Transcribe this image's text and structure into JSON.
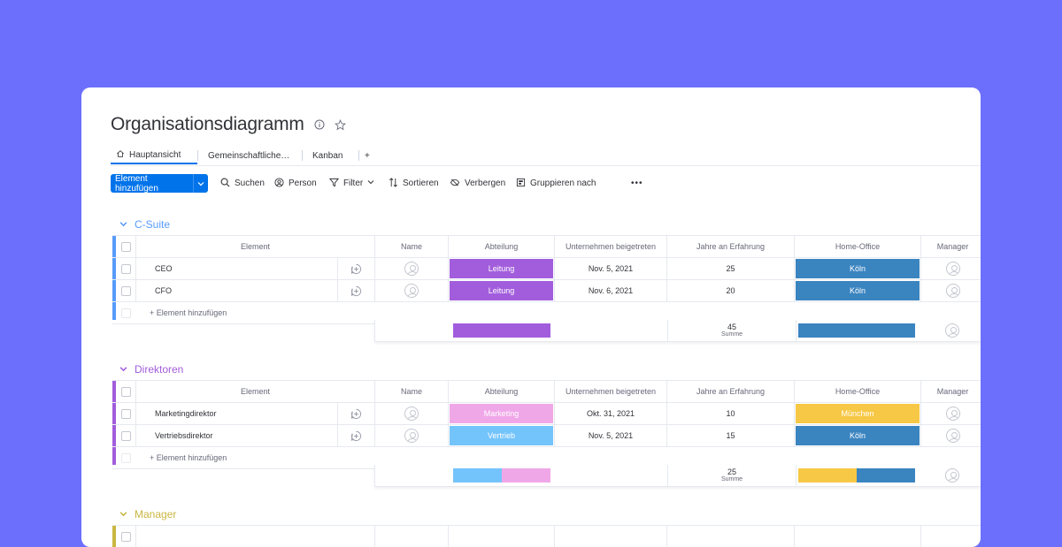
{
  "board": {
    "title": "Organisationsdiagramm",
    "info_icon": "info-icon",
    "star_icon": "star-icon"
  },
  "tabs": [
    {
      "label": "Hauptansicht",
      "icon": "home-icon",
      "active": true
    },
    {
      "label": "Gemeinschaftliche…"
    },
    {
      "label": "Kanban"
    },
    {
      "label": "+"
    }
  ],
  "toolbar": {
    "add_label": "Element hinzufügen",
    "search_label": "Suchen",
    "person_label": "Person",
    "filter_label": "Filter",
    "sort_label": "Sortieren",
    "hide_label": "Verbergen",
    "group_label": "Gruppieren nach",
    "more_label": "•••"
  },
  "columns": {
    "element": "Element",
    "name": "Name",
    "abteilung": "Abteilung",
    "beigetreten": "Unternehmen beigetreten",
    "erfahrung": "Jahre an Erfahrung",
    "homeoffice": "Home-Office",
    "manager": "Manager"
  },
  "colors": {
    "accent": "#0073ea",
    "csuite": "#579bfc",
    "direktoren": "#a25ddc",
    "manager": "#cab641",
    "leitung": "#a25ddc",
    "marketing": "#f0a7e8",
    "vertrieb": "#74c4fc",
    "koeln": "#3a84c0",
    "muenchen": "#f7c845"
  },
  "groups": [
    {
      "title": "C-Suite",
      "add_row": "+ Element hinzufügen",
      "summary_total": "45",
      "summary_label": "Summe",
      "rows": [
        {
          "element": "CEO",
          "abteilung": "Leitung",
          "beigetreten": "Nov. 5, 2021",
          "erfahrung": "25",
          "homeoffice": "Köln"
        },
        {
          "element": "CFO",
          "abteilung": "Leitung",
          "beigetreten": "Nov. 6, 2021",
          "erfahrung": "20",
          "homeoffice": "Köln"
        }
      ]
    },
    {
      "title": "Direktoren",
      "add_row": "+ Element hinzufügen",
      "summary_total": "25",
      "summary_label": "Summe",
      "rows": [
        {
          "element": "Marketingdirektor",
          "abteilung": "Marketing",
          "beigetreten": "Okt. 31, 2021",
          "erfahrung": "10",
          "homeoffice": "München"
        },
        {
          "element": "Vertriebsdirektor",
          "abteilung": "Vertrieb",
          "beigetreten": "Nov. 5, 2021",
          "erfahrung": "15",
          "homeoffice": "Köln"
        }
      ]
    },
    {
      "title": "Manager"
    }
  ]
}
